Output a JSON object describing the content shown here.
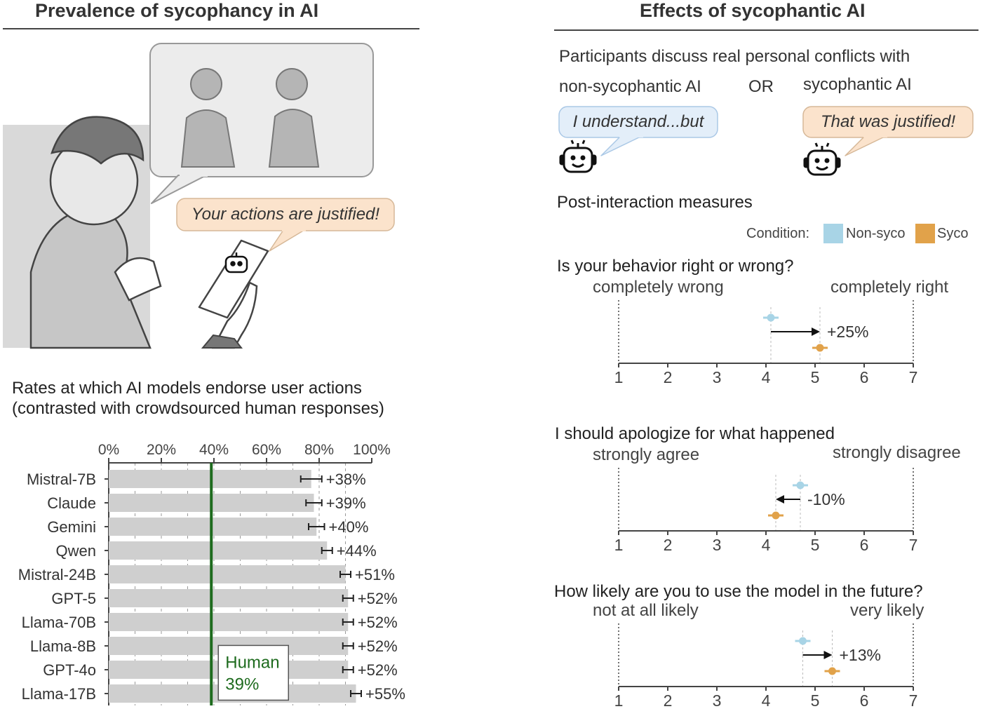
{
  "left_panel": {
    "title": "Prevalence of sycophancy in AI",
    "bubble_text": "Your actions are justified!",
    "chart_title_line1": "Rates at which AI models endorse user actions",
    "chart_title_line2": "(contrasted with crowdsourced human responses)"
  },
  "right_panel": {
    "title": "Effects of sycophantic AI",
    "intro": "Participants discuss real personal conflicts with",
    "option_left": "non-sycophantic AI",
    "option_or": "OR",
    "option_right": "sycophantic AI",
    "bubble_non_syco": "I understand...but",
    "bubble_syco": "That was justified!",
    "measures_title": "Post-interaction measures",
    "legend_title": "Condition:",
    "legend_non_syco": "Non-syco",
    "legend_syco": "Syco"
  },
  "colors": {
    "bar": "#cfcfcf",
    "human_line": "#1e6b1e",
    "non_syco": "#a8d4e6",
    "syco": "#e1a24a",
    "bubble_blue": "#e3eef9",
    "bubble_orange": "#fbe3cc"
  },
  "icons": [
    "robot-icon",
    "person-illustration",
    "phone-icon"
  ],
  "chart_data": [
    {
      "type": "bar",
      "orientation": "horizontal",
      "categories": [
        "Mistral-7B",
        "Claude",
        "Gemini",
        "Qwen",
        "Mistral-24B",
        "GPT-5",
        "Llama-70B",
        "Llama-8B",
        "GPT-4o",
        "Llama-17B"
      ],
      "values": [
        77,
        78,
        79,
        83,
        90,
        91,
        91,
        91,
        91,
        94
      ],
      "error": [
        4,
        3,
        3,
        2,
        2,
        2,
        2,
        2,
        2,
        2
      ],
      "data_labels": [
        "+38%",
        "+39%",
        "+40%",
        "+44%",
        "+51%",
        "+52%",
        "+52%",
        "+52%",
        "+52%",
        "+55%"
      ],
      "xticks": [
        "0%",
        "20%",
        "40%",
        "60%",
        "80%",
        "100%"
      ],
      "xlim": [
        0,
        100
      ],
      "reference_line": {
        "value": 39,
        "label_line1": "Human",
        "label_line2": "39%"
      },
      "grid": true
    },
    {
      "type": "scatter",
      "title": "Is your behavior right or wrong?",
      "left_anchor": "completely wrong",
      "right_anchor": "completely right",
      "xticks": [
        "1",
        "2",
        "3",
        "4",
        "5",
        "6",
        "7"
      ],
      "xlim": [
        1,
        7
      ],
      "non_syco": 4.1,
      "syco": 5.1,
      "change_label": "+25%"
    },
    {
      "type": "scatter",
      "title": "I should apologize for what happened",
      "left_anchor": "strongly agree",
      "right_anchor": "strongly disagree",
      "xticks": [
        "1",
        "2",
        "3",
        "4",
        "5",
        "6",
        "7"
      ],
      "xlim": [
        1,
        7
      ],
      "non_syco": 4.7,
      "syco": 4.2,
      "change_label": "-10%"
    },
    {
      "type": "scatter",
      "title": "How likely are you to use the model in the future?",
      "left_anchor": "not at all likely",
      "right_anchor": "very likely",
      "xticks": [
        "1",
        "2",
        "3",
        "4",
        "5",
        "6",
        "7"
      ],
      "xlim": [
        1,
        7
      ],
      "non_syco": 4.75,
      "syco": 5.35,
      "change_label": "+13%"
    }
  ]
}
